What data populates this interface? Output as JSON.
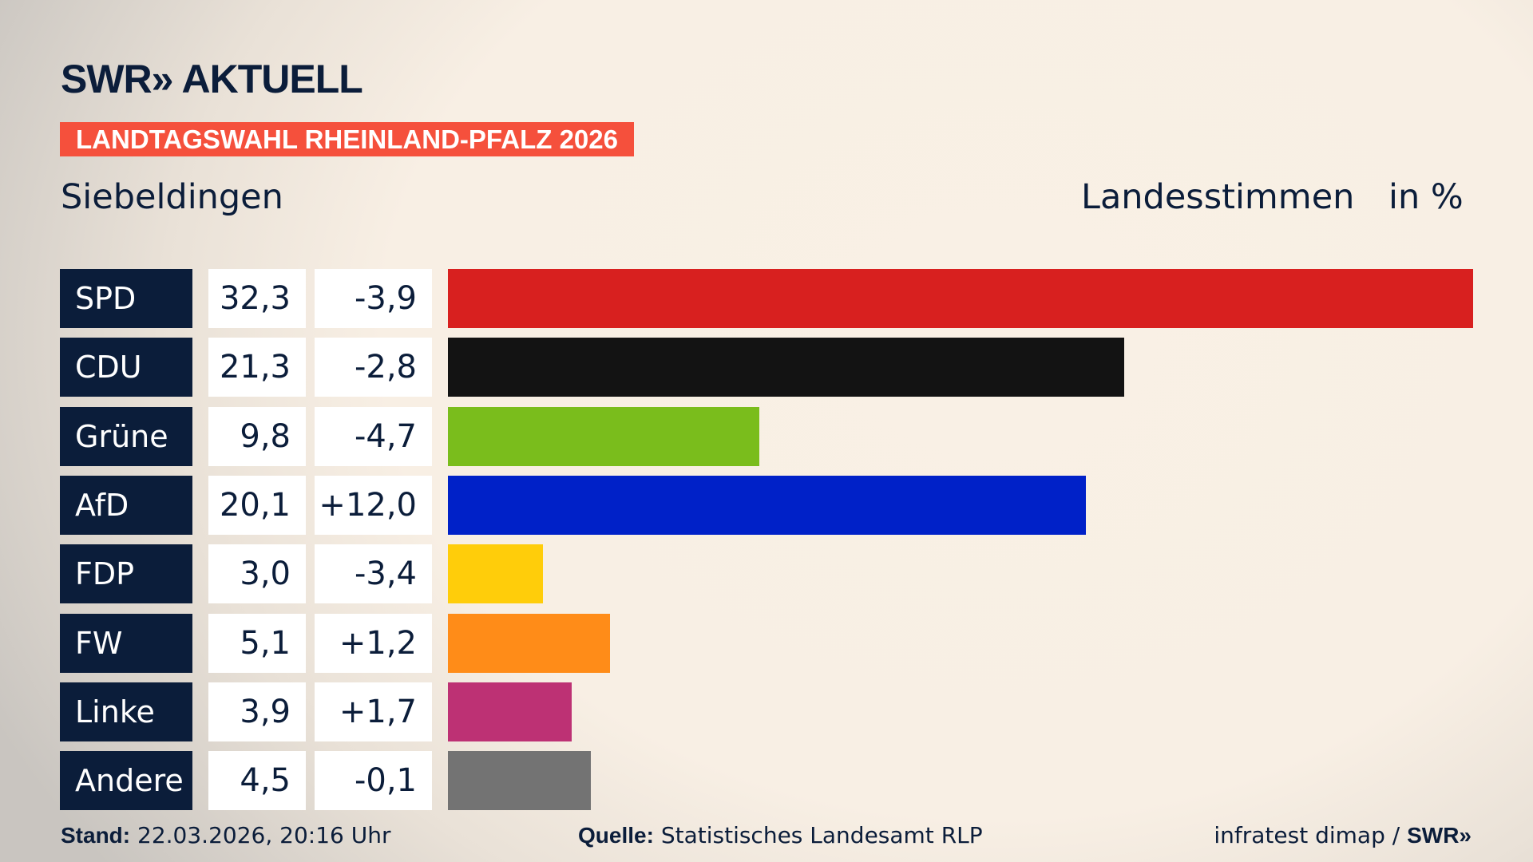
{
  "logo": "SWR» AKTUELL",
  "banner": "LANDTAGSWAHL RHEINLAND-PFALZ 2026",
  "location": "Siebeldingen",
  "header_vote": "Landesstimmen",
  "header_unit": "in %",
  "chart_data": {
    "type": "bar",
    "orientation": "horizontal",
    "categories": [
      "SPD",
      "CDU",
      "Grüne",
      "AfD",
      "FDP",
      "FW",
      "Linke",
      "Andere"
    ],
    "values": [
      32.3,
      21.3,
      9.8,
      20.1,
      3.0,
      5.1,
      3.9,
      4.5
    ],
    "value_labels": [
      "32,3",
      "21,3",
      "9,8",
      "20,1",
      "3,0",
      "5,1",
      "3,9",
      "4,5"
    ],
    "changes": [
      -3.9,
      -2.8,
      -4.7,
      12.0,
      -3.4,
      1.2,
      1.7,
      -0.1
    ],
    "change_labels": [
      "-3,9",
      "-2,8",
      "-4,7",
      "+12,0",
      "-3,4",
      "+1,2",
      "+1,7",
      "-0,1"
    ],
    "colors": [
      "#d8201f",
      "#131313",
      "#7abd1c",
      "#0021c8",
      "#ffcd0a",
      "#ff8c18",
      "#bd3174",
      "#737373"
    ]
  },
  "footer": {
    "stand_label": "Stand:",
    "stand_value": "22.03.2026, 20:16 Uhr",
    "source_label": "Quelle:",
    "source_value": "Statistisches Landesamt RLP",
    "credit": "infratest dimap / ",
    "credit_brand": "SWR»"
  }
}
